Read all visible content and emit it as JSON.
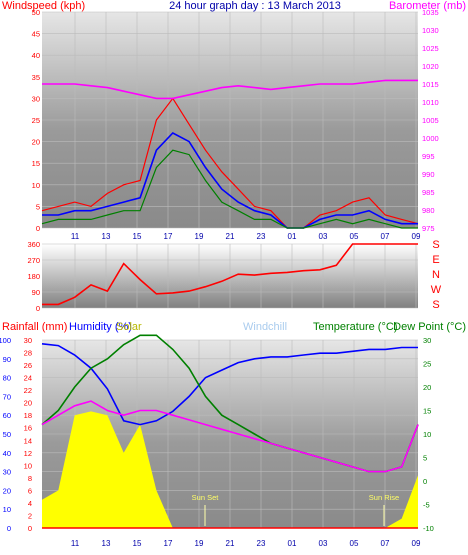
{
  "title": "24 hour graph day : 13 March 2013",
  "colors": {
    "wind": "#ff0000",
    "gust": "#ff0000",
    "avg": "#0000ff",
    "green": "#008000",
    "baro": "#ff00ff",
    "dir": "#ff0000",
    "temp": "#008000",
    "dew": "#008000",
    "hum": "#0000ff",
    "solar": "#ffff00",
    "rain": "#ff0000",
    "windchill": "#aaccee",
    "grid": "#bbbbbb"
  },
  "labels": {
    "windspeed": "Windspeed (kph)",
    "barometer": "Barometer (mb)",
    "rainfall": "Rainfall (mm)",
    "humidity": "Humidity (%)",
    "solar": "Solar",
    "windchill": "Windchill",
    "temperature": "Temperature (°C)",
    "dewpoint": "Dew Point (°C)",
    "sunset": "Sun Set",
    "sunrise": "Sun Rise"
  },
  "x_ticks": [
    "11",
    "13",
    "15",
    "17",
    "19",
    "21",
    "23",
    "01",
    "03",
    "05",
    "07",
    "09"
  ],
  "chart_data": [
    {
      "type": "line",
      "title": "24 hour graph day : 13 March 2013",
      "ylabel": "Windspeed (kph)",
      "y2label": "Barometer (mb)",
      "ylim": [
        0,
        50
      ],
      "y2lim": [
        975,
        1035
      ],
      "yticks": [
        0,
        5,
        10,
        15,
        20,
        25,
        30,
        35,
        40,
        45,
        50
      ],
      "y2ticks": [
        975,
        980,
        985,
        990,
        995,
        1000,
        1005,
        1010,
        1015,
        1020,
        1025,
        1030,
        1035
      ],
      "x": [
        "10",
        "11",
        "12",
        "13",
        "14",
        "15",
        "16",
        "17",
        "18",
        "19",
        "20",
        "21",
        "22",
        "23",
        "00",
        "01",
        "02",
        "03",
        "04",
        "05",
        "06",
        "07",
        "08",
        "09"
      ],
      "series": [
        {
          "name": "Windspeed (kph)",
          "values": [
            4,
            5,
            6,
            5,
            8,
            10,
            11,
            25,
            30,
            24,
            18,
            13,
            9,
            5,
            4,
            0,
            0,
            3,
            4,
            6,
            7,
            3,
            2,
            1
          ]
        },
        {
          "values": [
            3,
            3,
            4,
            4,
            5,
            6,
            7,
            18,
            22,
            20,
            14,
            9,
            6,
            4,
            3,
            0,
            0,
            2,
            3,
            3,
            4,
            2,
            1,
            1
          ]
        },
        {
          "values": [
            1,
            2,
            2,
            2,
            3,
            4,
            4,
            14,
            18,
            17,
            11,
            6,
            4,
            2,
            2,
            0,
            0,
            1,
            2,
            1,
            2,
            1,
            0,
            0
          ]
        },
        {
          "name": "Barometer (mb)",
          "values": [
            1015,
            1015,
            1015,
            1014.5,
            1014,
            1013,
            1012,
            1011,
            1011,
            1012,
            1013,
            1014,
            1014.5,
            1014,
            1013.5,
            1014,
            1014.5,
            1015,
            1015,
            1015,
            1015.5,
            1016,
            1016,
            1016
          ]
        }
      ]
    },
    {
      "type": "line",
      "yticks": [
        0,
        90,
        180,
        270,
        360
      ],
      "ylim": [
        0,
        360
      ],
      "compass": [
        "S",
        "E",
        "N",
        "W",
        "S"
      ],
      "x": [
        "10",
        "11",
        "12",
        "13",
        "14",
        "15",
        "16",
        "17",
        "18",
        "19",
        "20",
        "21",
        "22",
        "23",
        "00",
        "01",
        "02",
        "03",
        "04",
        "05",
        "06",
        "07",
        "08",
        "09"
      ],
      "series": [
        {
          "values": [
            20,
            20,
            60,
            130,
            95,
            250,
            160,
            80,
            85,
            95,
            120,
            150,
            190,
            185,
            195,
            200,
            210,
            215,
            240,
            360,
            360,
            360,
            360,
            360
          ]
        }
      ]
    },
    {
      "type": "area",
      "ylabel": "Rainfall (mm)",
      "y1ticks": [
        0,
        10,
        20,
        30,
        40,
        50,
        60,
        70,
        80,
        90,
        100
      ],
      "y2ticks": [
        0,
        2,
        4,
        6,
        8,
        10,
        12,
        14,
        16,
        18,
        20,
        22,
        24,
        26,
        28,
        30
      ],
      "y3ticks": [
        -10,
        -5,
        0,
        5,
        10,
        15,
        20,
        25,
        30
      ],
      "ylim": [
        0,
        100
      ],
      "y3lim": [
        -10,
        30
      ],
      "x": [
        "10",
        "11",
        "12",
        "13",
        "14",
        "15",
        "16",
        "17",
        "18",
        "19",
        "20",
        "21",
        "22",
        "23",
        "00",
        "01",
        "02",
        "03",
        "04",
        "05",
        "06",
        "07",
        "08",
        "09"
      ],
      "series": [
        {
          "name": "Humidity (%)",
          "values": [
            98,
            97,
            92,
            85,
            74,
            57,
            55,
            57,
            62,
            70,
            80,
            84,
            88,
            90,
            91,
            91,
            92,
            93,
            93,
            94,
            95,
            95,
            96,
            96
          ]
        },
        {
          "name": "Temperature (°C)",
          "values": [
            12,
            15,
            20,
            24,
            26,
            29,
            31,
            31,
            28,
            24,
            18,
            14,
            12,
            10,
            8,
            7,
            6,
            5,
            4,
            3,
            2,
            2,
            3,
            12
          ]
        },
        {
          "values": [
            12,
            14,
            16,
            17,
            15,
            14,
            15,
            15,
            14,
            13,
            12,
            11,
            10,
            9,
            8,
            7,
            6,
            5,
            4,
            3,
            2,
            2,
            3,
            12
          ]
        },
        {
          "name": "Solar",
          "values": [
            15,
            20,
            60,
            62,
            60,
            40,
            55,
            20,
            0,
            0,
            0,
            0,
            0,
            0,
            0,
            0,
            0,
            0,
            0,
            0,
            0,
            0,
            5,
            28
          ]
        },
        {
          "name": "Rainfall (mm)",
          "values": [
            0,
            0,
            0,
            0,
            0,
            0,
            0,
            0,
            0,
            0,
            0,
            0,
            0,
            0,
            0,
            0,
            0,
            0,
            0,
            0,
            0,
            0,
            0,
            0
          ]
        }
      ]
    }
  ]
}
